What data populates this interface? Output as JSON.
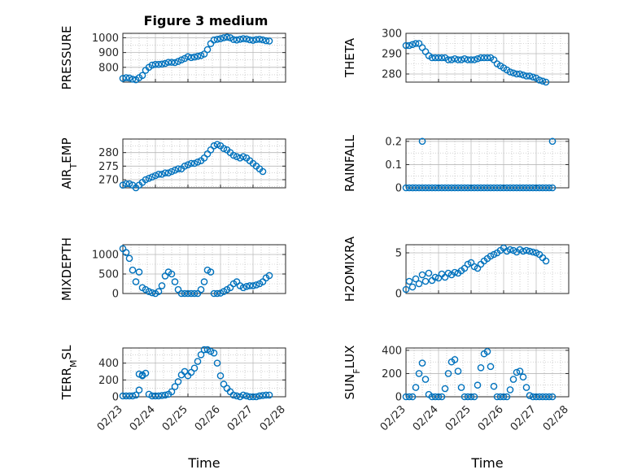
{
  "figure": {
    "title": "Figure 3 medium",
    "marker_color": "#0072bd",
    "axes_color": "#262626",
    "grid_color": "#b8b8b8"
  },
  "chart_data": [
    {
      "type": "scatter",
      "ylabel": "PRESSURE",
      "ylim": [
        700,
        1030
      ],
      "yticks": [
        800,
        900,
        1000
      ],
      "xlim": [
        "02/23",
        "02/27"
      ],
      "xticks": [],
      "grid": true,
      "series": [
        {
          "x": [
            0.0,
            0.1,
            0.2,
            0.3,
            0.4,
            0.5,
            0.6,
            0.7,
            0.8,
            0.9,
            1.0,
            1.1,
            1.2,
            1.3,
            1.4,
            1.5,
            1.6,
            1.7,
            1.8,
            1.9,
            2.0,
            2.1,
            2.2,
            2.3,
            2.4,
            2.5,
            2.6,
            2.7,
            2.8,
            2.9,
            3.0,
            3.1,
            3.2,
            3.3,
            3.4,
            3.5,
            3.6,
            3.7,
            3.8,
            3.9,
            4.0,
            4.1,
            4.2,
            4.3,
            4.4,
            4.5
          ],
          "y": [
            725,
            730,
            728,
            720,
            716,
            730,
            745,
            780,
            800,
            815,
            820,
            820,
            822,
            826,
            834,
            834,
            832,
            840,
            850,
            860,
            872,
            866,
            870,
            875,
            880,
            890,
            920,
            960,
            985,
            990,
            994,
            1000,
            1004,
            1000,
            988,
            985,
            990,
            994,
            992,
            986,
            983,
            988,
            990,
            986,
            980,
            978
          ]
        }
      ]
    },
    {
      "type": "scatter",
      "ylabel": "THETA",
      "ylim": [
        276,
        300
      ],
      "yticks": [
        280,
        290,
        300
      ],
      "xlim": [
        "02/23",
        "02/27"
      ],
      "xticks": [],
      "grid": true,
      "series": [
        {
          "x": [
            0.0,
            0.1,
            0.2,
            0.3,
            0.4,
            0.5,
            0.6,
            0.7,
            0.8,
            0.9,
            1.0,
            1.1,
            1.2,
            1.3,
            1.4,
            1.5,
            1.6,
            1.7,
            1.8,
            1.9,
            2.0,
            2.1,
            2.2,
            2.3,
            2.4,
            2.5,
            2.6,
            2.7,
            2.8,
            2.9,
            3.0,
            3.1,
            3.2,
            3.3,
            3.4,
            3.5,
            3.6,
            3.7,
            3.8,
            3.9,
            4.0,
            4.1,
            4.2,
            4.3
          ],
          "y": [
            294,
            294,
            294.5,
            295,
            295,
            293,
            291,
            289,
            288,
            288,
            288,
            288,
            288,
            287,
            287,
            287.5,
            287,
            287,
            287.5,
            287,
            287,
            287,
            287.5,
            288,
            288,
            288,
            288,
            287,
            285,
            284,
            283,
            282,
            281,
            280.5,
            280,
            280,
            279.5,
            279,
            279,
            278.5,
            278,
            277,
            276.5,
            276
          ]
        }
      ]
    },
    {
      "type": "scatter",
      "ylabel": "AIR_TEMP",
      "ylim": [
        267,
        285
      ],
      "yticks": [
        270,
        275,
        280
      ],
      "xlim": [
        "02/23",
        "02/27"
      ],
      "xticks": [],
      "grid": true,
      "series": [
        {
          "x": [
            0.0,
            0.1,
            0.2,
            0.3,
            0.4,
            0.5,
            0.6,
            0.7,
            0.8,
            0.9,
            1.0,
            1.1,
            1.2,
            1.3,
            1.4,
            1.5,
            1.6,
            1.7,
            1.8,
            1.9,
            2.0,
            2.1,
            2.2,
            2.3,
            2.4,
            2.5,
            2.6,
            2.7,
            2.8,
            2.9,
            3.0,
            3.1,
            3.2,
            3.3,
            3.4,
            3.5,
            3.6,
            3.7,
            3.8,
            3.9,
            4.0,
            4.1,
            4.2,
            4.3
          ],
          "y": [
            268,
            268.5,
            268.5,
            268,
            267,
            268,
            269,
            270,
            270.5,
            271,
            271.5,
            272,
            272,
            272.5,
            272.5,
            273,
            273.5,
            274,
            274,
            275,
            275.5,
            276,
            276,
            276.5,
            277,
            278,
            279.5,
            281,
            282.5,
            283,
            282.5,
            281.5,
            281,
            280,
            279,
            278.5,
            278,
            278.5,
            278,
            277,
            276,
            275,
            274,
            273
          ]
        }
      ]
    },
    {
      "type": "scatter",
      "ylabel": "RAINFALL",
      "ylim": [
        0,
        0.21
      ],
      "yticks": [
        0,
        0.1,
        0.2
      ],
      "xlim": [
        "02/23",
        "02/27"
      ],
      "xticks": [],
      "grid": true,
      "series": [
        {
          "x": [
            0.0,
            0.1,
            0.2,
            0.3,
            0.4,
            0.5,
            0.6,
            0.7,
            0.8,
            0.9,
            1.0,
            1.1,
            1.2,
            1.3,
            1.4,
            1.5,
            1.6,
            1.7,
            1.8,
            1.9,
            2.0,
            2.1,
            2.2,
            2.3,
            2.4,
            2.5,
            2.6,
            2.7,
            2.8,
            2.9,
            3.0,
            3.1,
            3.2,
            3.3,
            3.4,
            3.5,
            3.6,
            3.7,
            3.8,
            3.9,
            4.0,
            4.1,
            4.2,
            4.3,
            4.4,
            4.5,
            0.5,
            4.5
          ],
          "y": [
            0,
            0,
            0,
            0,
            0,
            0,
            0,
            0,
            0,
            0,
            0,
            0,
            0,
            0,
            0,
            0,
            0,
            0,
            0,
            0,
            0,
            0,
            0,
            0,
            0,
            0,
            0,
            0,
            0,
            0,
            0,
            0,
            0,
            0,
            0,
            0,
            0,
            0,
            0,
            0,
            0,
            0,
            0,
            0,
            0,
            0,
            0.2,
            0.2
          ]
        }
      ]
    },
    {
      "type": "scatter",
      "ylabel": "MIXDEPTH",
      "ylim": [
        0,
        1250
      ],
      "yticks": [
        0,
        500,
        1000
      ],
      "xlim": [
        "02/23",
        "02/27"
      ],
      "xticks": [],
      "grid": true,
      "series": [
        {
          "x": [
            0.0,
            0.1,
            0.2,
            0.3,
            0.4,
            0.5,
            0.6,
            0.7,
            0.8,
            0.9,
            1.0,
            1.1,
            1.2,
            1.3,
            1.4,
            1.5,
            1.6,
            1.7,
            1.8,
            1.9,
            2.0,
            2.1,
            2.2,
            2.3,
            2.4,
            2.5,
            2.6,
            2.7,
            2.8,
            2.9,
            3.0,
            3.1,
            3.2,
            3.3,
            3.4,
            3.5,
            3.6,
            3.7,
            3.8,
            3.9,
            4.0,
            4.1,
            4.2,
            4.3,
            4.4,
            4.5
          ],
          "y": [
            1150,
            1050,
            900,
            600,
            300,
            550,
            150,
            100,
            50,
            20,
            0,
            50,
            200,
            450,
            550,
            500,
            300,
            100,
            0,
            0,
            0,
            0,
            0,
            0,
            100,
            300,
            600,
            550,
            0,
            0,
            10,
            50,
            100,
            150,
            250,
            300,
            200,
            150,
            180,
            200,
            200,
            220,
            250,
            300,
            400,
            460
          ]
        }
      ]
    },
    {
      "type": "scatter",
      "ylabel": "H2OMIXRA",
      "ylim": [
        0,
        6
      ],
      "yticks": [
        0,
        5
      ],
      "xlim": [
        "02/23",
        "02/27"
      ],
      "xticks": [],
      "grid": true,
      "series": [
        {
          "x": [
            0.0,
            0.1,
            0.2,
            0.3,
            0.4,
            0.5,
            0.6,
            0.7,
            0.8,
            0.9,
            1.0,
            1.1,
            1.2,
            1.3,
            1.4,
            1.5,
            1.6,
            1.7,
            1.8,
            1.9,
            2.0,
            2.1,
            2.2,
            2.3,
            2.4,
            2.5,
            2.6,
            2.7,
            2.8,
            2.9,
            3.0,
            3.1,
            3.2,
            3.3,
            3.4,
            3.5,
            3.6,
            3.7,
            3.8,
            3.9,
            4.0,
            4.1,
            4.2,
            4.3
          ],
          "y": [
            0.5,
            1.5,
            0.8,
            1.8,
            1.2,
            2.3,
            1.5,
            2.5,
            1.6,
            2.0,
            1.9,
            2.4,
            2.0,
            2.5,
            2.3,
            2.6,
            2.5,
            2.8,
            3.1,
            3.6,
            3.8,
            3.3,
            3.1,
            3.6,
            4.0,
            4.3,
            4.6,
            4.8,
            5.0,
            5.3,
            5.6,
            5.2,
            5.4,
            5.3,
            5.1,
            5.4,
            5.2,
            5.3,
            5.2,
            5.1,
            5.0,
            4.8,
            4.4,
            4.0
          ]
        }
      ]
    },
    {
      "type": "scatter",
      "ylabel": "TERR_MSL",
      "ylim": [
        0,
        580
      ],
      "yticks": [
        0,
        200,
        400
      ],
      "xlim": [
        "02/23",
        "02/28"
      ],
      "xticks": [
        "02/23",
        "02/24",
        "02/25",
        "02/26",
        "02/27",
        "02/28"
      ],
      "xlabel": "Time",
      "grid": true,
      "series": [
        {
          "x": [
            0.0,
            0.1,
            0.2,
            0.3,
            0.4,
            0.5,
            0.6,
            0.7,
            0.8,
            0.9,
            1.0,
            1.1,
            1.2,
            1.3,
            1.4,
            1.5,
            1.6,
            1.7,
            1.8,
            1.9,
            2.0,
            2.1,
            2.2,
            2.3,
            2.4,
            2.5,
            2.6,
            2.7,
            2.8,
            2.9,
            3.0,
            3.1,
            3.2,
            3.3,
            3.4,
            3.5,
            3.6,
            3.7,
            3.8,
            3.9,
            4.0,
            4.1,
            4.2,
            4.3,
            4.4,
            4.5,
            0.6,
            0.5
          ],
          "y": [
            10,
            10,
            10,
            10,
            20,
            80,
            250,
            280,
            30,
            10,
            10,
            10,
            15,
            20,
            30,
            60,
            120,
            180,
            260,
            300,
            250,
            290,
            340,
            420,
            500,
            560,
            560,
            540,
            520,
            400,
            250,
            150,
            100,
            60,
            20,
            10,
            0,
            20,
            10,
            0,
            0,
            0,
            10,
            15,
            20,
            20,
            260,
            270
          ]
        }
      ]
    },
    {
      "type": "scatter",
      "ylabel": "SUN_FLUX",
      "ylim": [
        0,
        420
      ],
      "yticks": [
        0,
        200,
        400
      ],
      "xlim": [
        "02/23",
        "02/28"
      ],
      "xticks": [
        "02/23",
        "02/24",
        "02/25",
        "02/26",
        "02/27",
        "02/28"
      ],
      "xlabel": "Time",
      "grid": true,
      "series": [
        {
          "x": [
            0.0,
            0.1,
            0.2,
            0.3,
            0.4,
            0.5,
            0.6,
            0.7,
            0.8,
            0.9,
            1.0,
            1.1,
            1.2,
            1.3,
            1.4,
            1.5,
            1.6,
            1.7,
            1.8,
            1.9,
            2.0,
            2.1,
            2.2,
            2.3,
            2.4,
            2.5,
            2.6,
            2.7,
            2.8,
            2.9,
            3.0,
            3.1,
            3.2,
            3.3,
            3.4,
            3.5,
            3.6,
            3.7,
            3.8,
            3.9,
            4.0,
            4.1,
            4.2,
            4.3,
            4.4,
            4.5
          ],
          "y": [
            0,
            0,
            0,
            80,
            200,
            290,
            150,
            20,
            0,
            0,
            0,
            0,
            70,
            200,
            300,
            320,
            220,
            80,
            0,
            0,
            0,
            0,
            100,
            250,
            370,
            390,
            260,
            90,
            0,
            0,
            0,
            0,
            60,
            150,
            210,
            220,
            170,
            80,
            10,
            0,
            0,
            0,
            0,
            0,
            0,
            0
          ]
        }
      ]
    }
  ]
}
